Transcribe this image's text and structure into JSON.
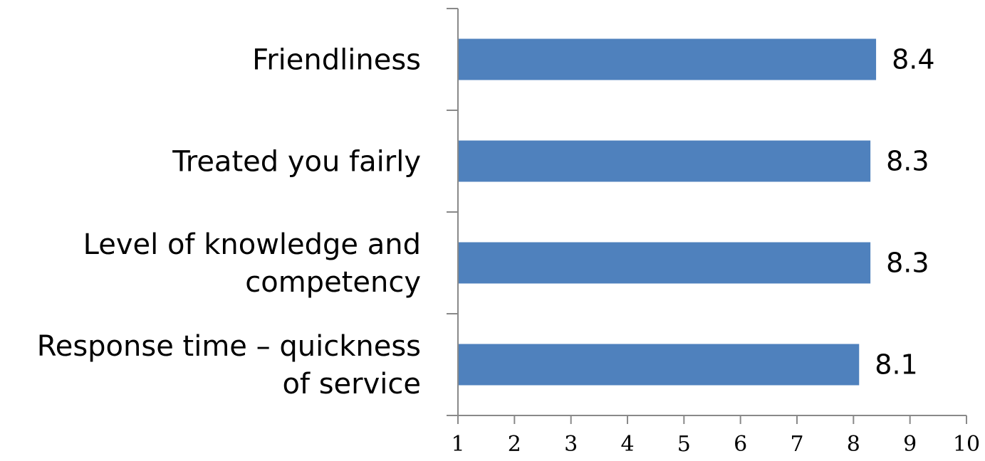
{
  "chart_data": {
    "type": "bar",
    "orientation": "horizontal",
    "categories": [
      [
        "Friendliness"
      ],
      [
        "Treated you fairly"
      ],
      [
        "Level of knowledge and",
        "competency"
      ],
      [
        "Response  time – quickness",
        "of service"
      ]
    ],
    "values": [
      8.4,
      8.3,
      8.3,
      8.1
    ],
    "value_labels": [
      "8.4",
      "8.3",
      "8.3",
      "8.1"
    ],
    "xlim": [
      1,
      10
    ],
    "xticks": [
      "1",
      "2",
      "3",
      "4",
      "5",
      "6",
      "7",
      "8",
      "9",
      "10"
    ],
    "bar_color": "#4F81BD",
    "grid": false,
    "legend": "none",
    "title": "",
    "xlabel": "",
    "ylabel": ""
  }
}
